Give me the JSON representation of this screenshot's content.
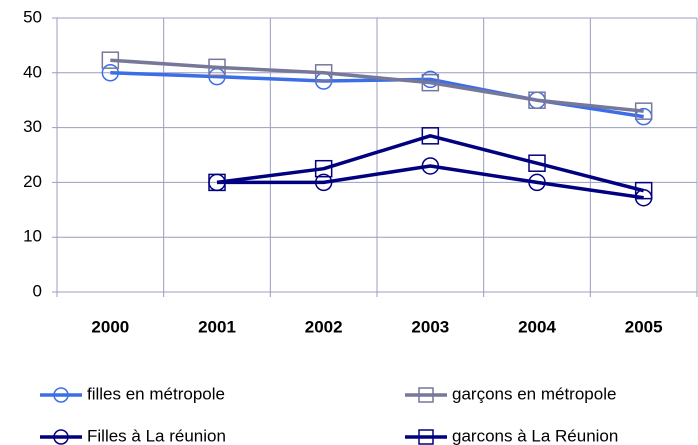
{
  "chart_data": {
    "type": "line",
    "categories": [
      "2000",
      "2001",
      "2002",
      "2003",
      "2004",
      "2005"
    ],
    "series": [
      {
        "name": "filles en métropole",
        "color": "#3c6ee6",
        "marker": "circle",
        "values": [
          40,
          39.3,
          38.5,
          38.8,
          35,
          32
        ]
      },
      {
        "name": "garçons en métropole",
        "color": "#77779a",
        "marker": "square",
        "values": [
          42.3,
          41,
          40,
          38.2,
          35,
          33
        ]
      },
      {
        "name": "Filles à La réunion",
        "color": "#000080",
        "marker": "circle",
        "values": [
          null,
          20,
          20,
          23,
          20,
          17.2
        ]
      },
      {
        "name": "garcons à La Réunion",
        "color": "#000080",
        "marker": "square",
        "values": [
          null,
          20,
          22.5,
          28.5,
          23.5,
          18.5
        ]
      }
    ],
    "ylim": [
      0,
      50
    ],
    "yticks": [
      0,
      10,
      20,
      30,
      40,
      50
    ],
    "grid": true
  }
}
